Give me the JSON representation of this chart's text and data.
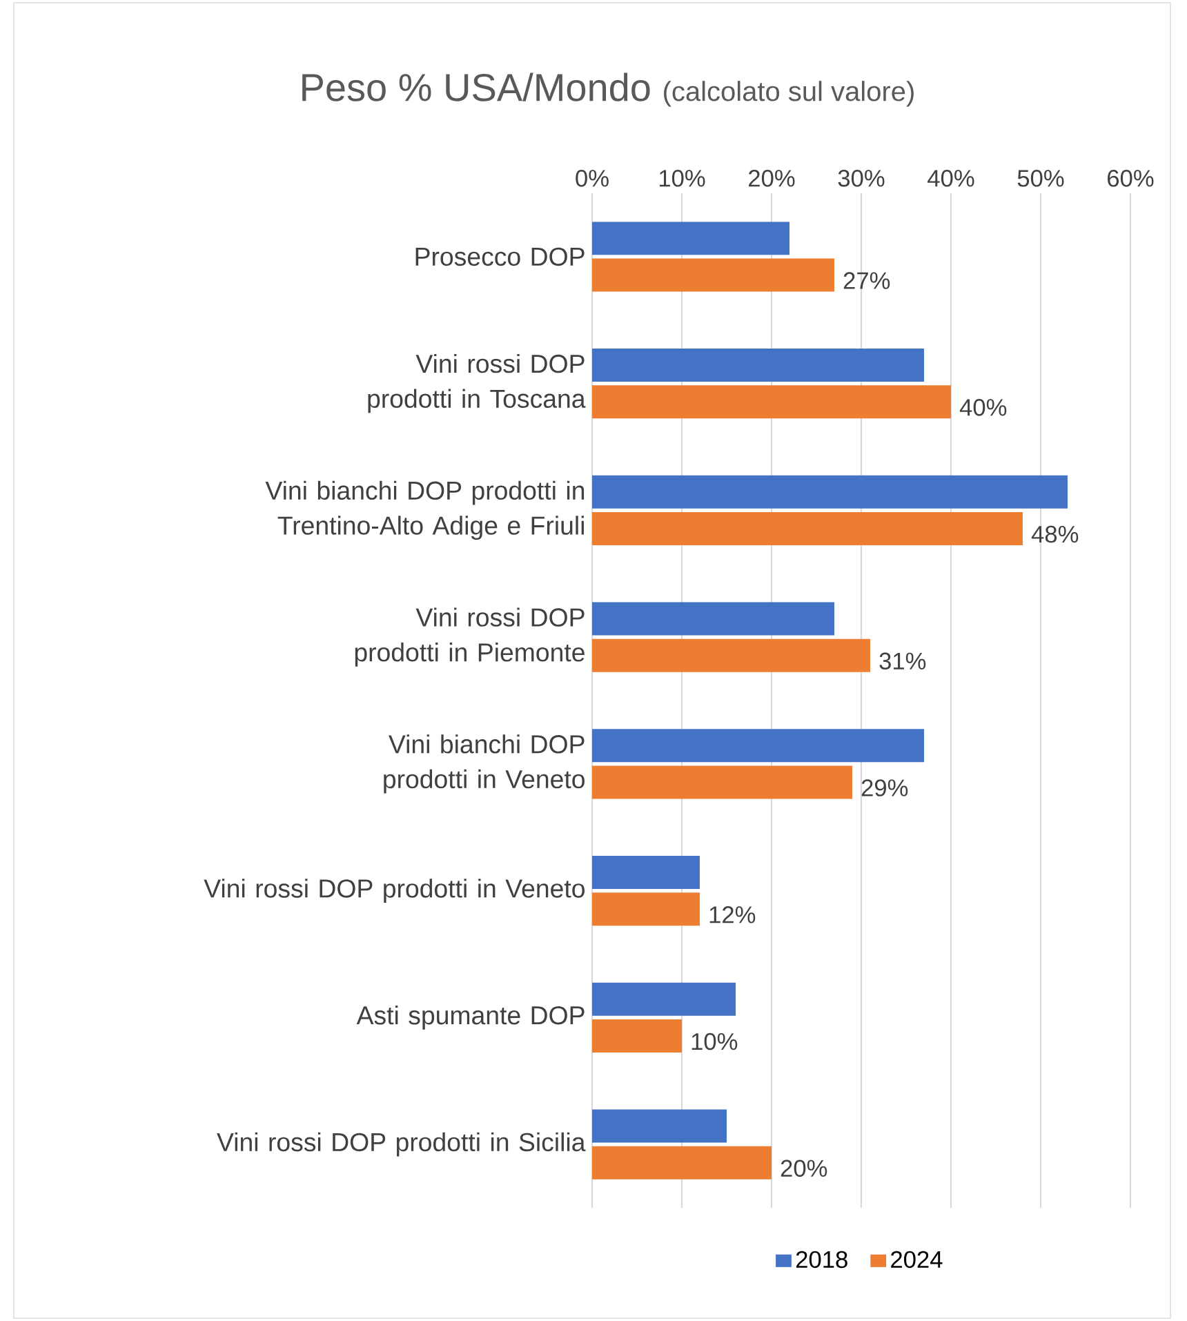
{
  "chart_data": {
    "type": "bar",
    "orientation": "horizontal",
    "title": "Peso % USA/Mondo",
    "subtitle": "(calcolato sul valore)",
    "categories": [
      "Prosecco DOP",
      "Vini rossi DOP prodotti in Toscana",
      "Vini bianchi DOP prodotti in Trentino-Alto Adige e Friuli",
      "Vini rossi DOP prodotti in Piemonte",
      "Vini bianchi DOP prodotti in Veneto",
      "Vini rossi DOP prodotti in Veneto",
      "Asti spumante DOP",
      "Vini rossi DOP prodotti in Sicilia"
    ],
    "series": [
      {
        "name": "2018",
        "color": "#4472c4",
        "values": [
          22,
          37,
          53,
          27,
          37,
          12,
          16,
          15
        ]
      },
      {
        "name": "2024",
        "color": "#ed7d31",
        "values": [
          27,
          40,
          48,
          31,
          29,
          12,
          10,
          20
        ],
        "value_labels": [
          "27%",
          "40%",
          "48%",
          "31%",
          "29%",
          "12%",
          "10%",
          "20%"
        ]
      }
    ],
    "xlim": [
      0,
      60
    ],
    "xticks": [
      {
        "value": 0,
        "label": "0%"
      },
      {
        "value": 10,
        "label": "10%"
      },
      {
        "value": 20,
        "label": "20%"
      },
      {
        "value": 30,
        "label": "30%"
      },
      {
        "value": 40,
        "label": "40%"
      },
      {
        "value": 50,
        "label": "50%"
      },
      {
        "value": 60,
        "label": "60%"
      }
    ],
    "grid": "x",
    "legend": "bottom"
  }
}
